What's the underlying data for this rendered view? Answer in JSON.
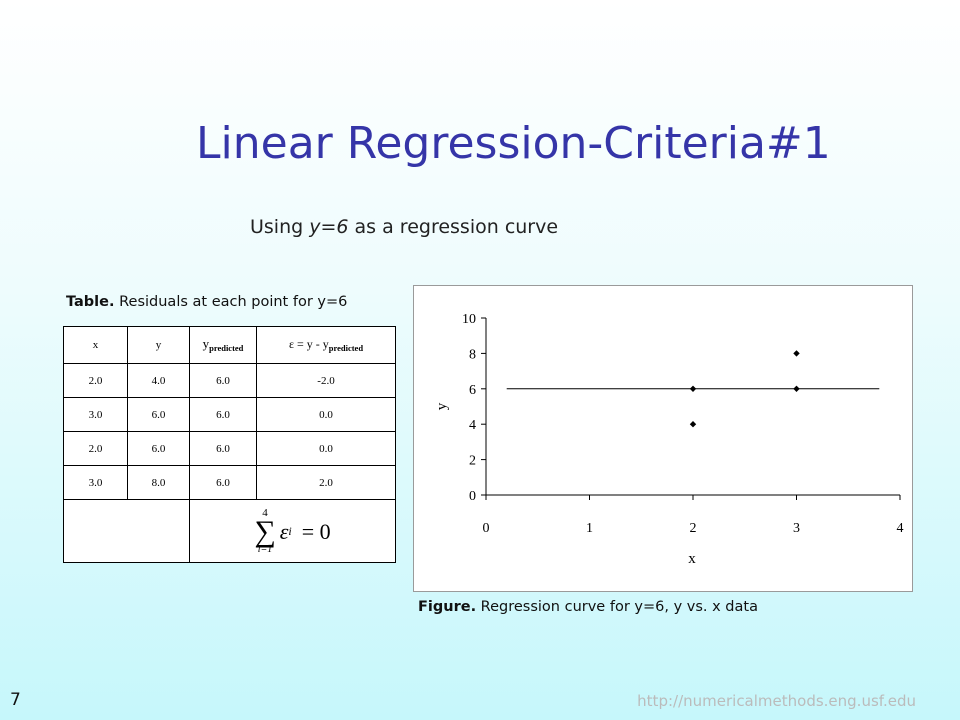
{
  "title": "Linear Regression-Criteria#1",
  "subtitle": {
    "prefix": "Using ",
    "equation": "y=6",
    "suffix": " as a regression curve"
  },
  "table": {
    "caption_label": "Table.",
    "caption_text": " Residuals at each point for y=6",
    "headers": {
      "x": "x",
      "y": "y",
      "ypred_main": "y",
      "ypred_sub": "predicted",
      "eps_main": "ε = y - y",
      "eps_sub": "predicted"
    },
    "rows": [
      [
        "2.0",
        "4.0",
        "6.0",
        "-2.0"
      ],
      [
        "3.0",
        "6.0",
        "6.0",
        "0.0"
      ],
      [
        "2.0",
        "6.0",
        "6.0",
        "0.0"
      ],
      [
        "3.0",
        "8.0",
        "6.0",
        "2.0"
      ]
    ],
    "summation": {
      "upper": "4",
      "lower": "i=1",
      "term": "ε",
      "index": "i",
      "result": "= 0"
    }
  },
  "chart_data": {
    "type": "scatter",
    "xlabel": "x",
    "ylabel": "y",
    "xlim": [
      0,
      4
    ],
    "ylim": [
      0,
      10
    ],
    "xticks": [
      "0",
      "1",
      "2",
      "3",
      "4"
    ],
    "yticks": [
      "0",
      "2",
      "4",
      "6",
      "8",
      "10"
    ],
    "points": [
      {
        "x": 2,
        "y": 4
      },
      {
        "x": 3,
        "y": 6
      },
      {
        "x": 2,
        "y": 6
      },
      {
        "x": 3,
        "y": 8
      }
    ],
    "regression_line": {
      "equation": "y=6",
      "x": [
        0.2,
        3.8
      ],
      "y": [
        6,
        6
      ]
    },
    "marker": "diamond",
    "color": "#000000"
  },
  "figure": {
    "caption_label": "Figure.",
    "caption_text": " Regression curve for y=6, y vs. x data"
  },
  "footer": {
    "slide_number": "7",
    "url": "http://numericalmethods.eng.usf.edu"
  }
}
